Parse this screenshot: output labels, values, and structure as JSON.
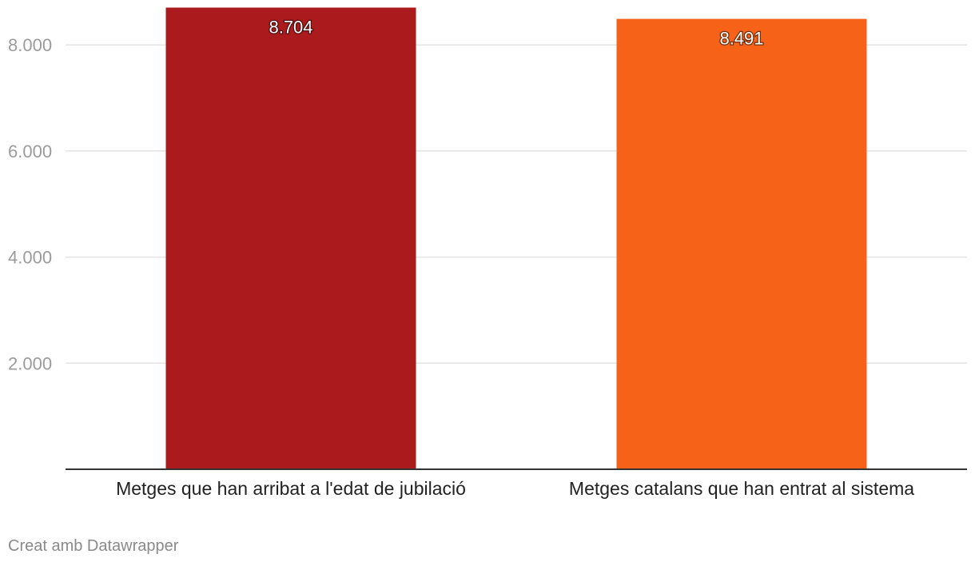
{
  "chart_data": {
    "type": "bar",
    "categories": [
      "Metges que han arribat a l'edat de jubilació",
      "Metges catalans que han entrat al sistema"
    ],
    "values": [
      8704,
      8491
    ],
    "value_labels": [
      "8.704",
      "8.491"
    ],
    "colors": [
      "#ab1b1e",
      "#f56218"
    ],
    "ylim": [
      0,
      8800
    ],
    "yticks": [
      2000,
      4000,
      6000,
      8000
    ],
    "ytick_labels": [
      "2.000",
      "4.000",
      "6.000",
      "8.000"
    ],
    "grid": true,
    "xlabel": "",
    "ylabel": ""
  },
  "footer": {
    "credit": "Creat amb Datawrapper"
  }
}
